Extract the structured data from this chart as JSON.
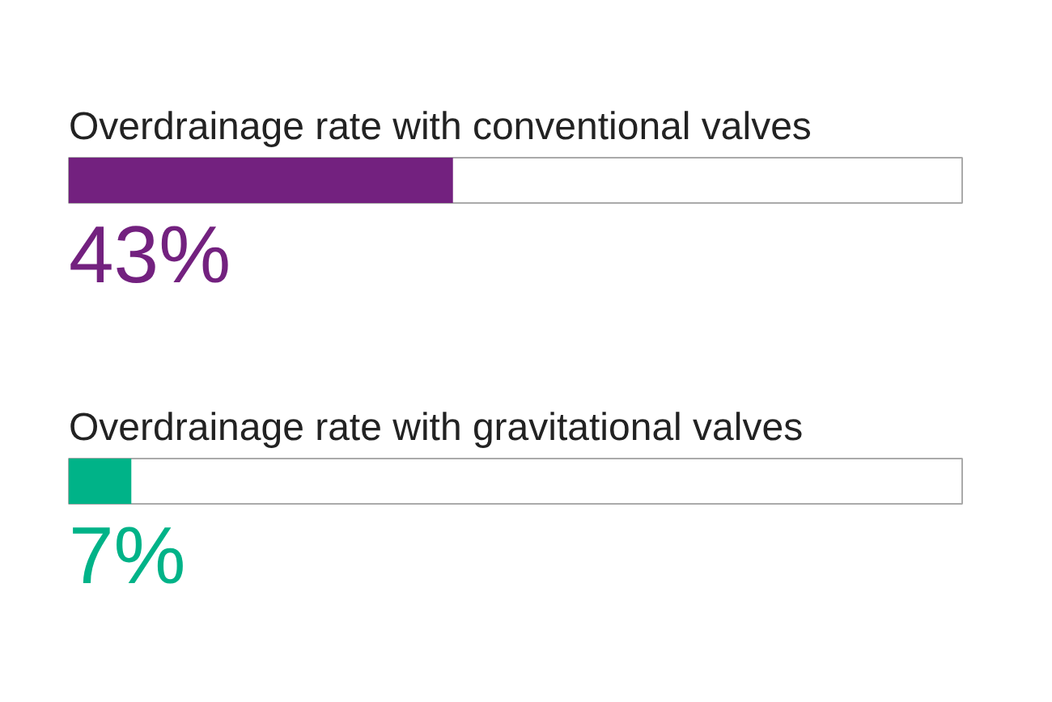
{
  "chart_data": {
    "type": "bar",
    "orientation": "horizontal",
    "categories": [
      "Overdrainage rate with conventional valves",
      "Overdrainage rate with gravitational valves"
    ],
    "values": [
      43,
      7
    ],
    "colors": [
      "#73217f",
      "#00b388"
    ],
    "value_labels": [
      "43%",
      "7%"
    ],
    "xlim": [
      0,
      100
    ],
    "tick_labels": false
  }
}
